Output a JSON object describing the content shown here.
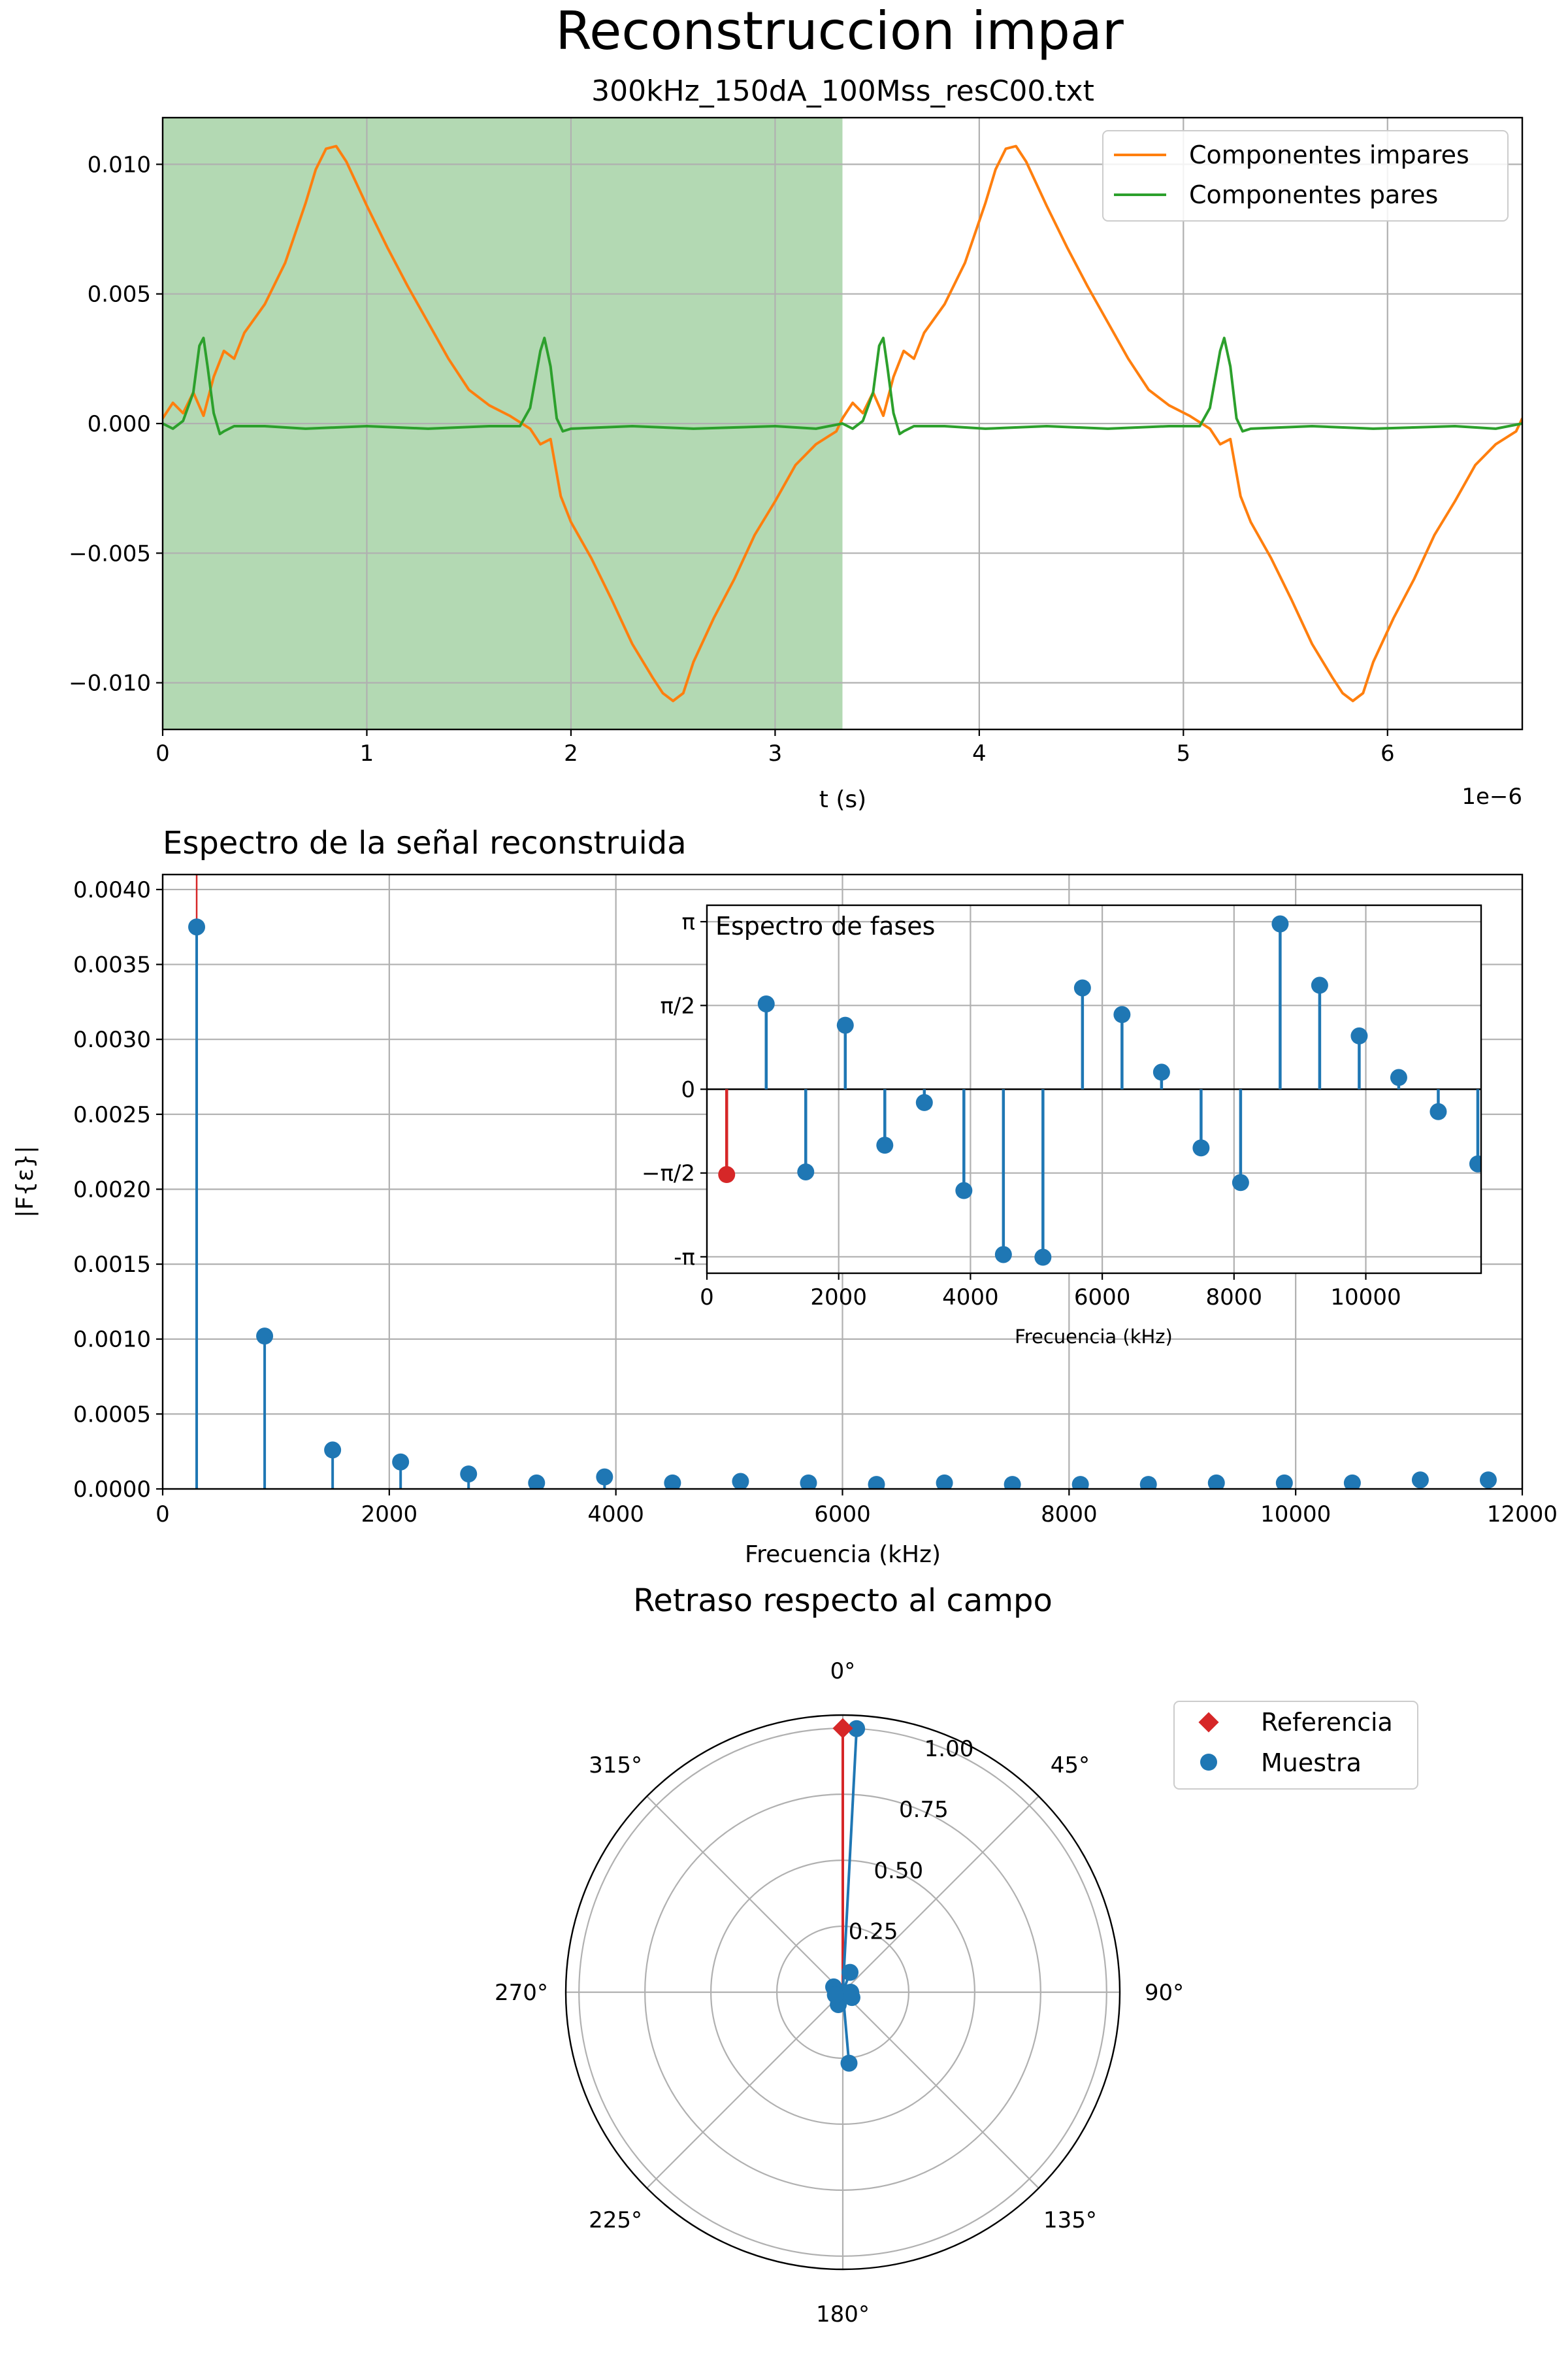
{
  "figure": {
    "suptitle": "Reconstruccion impar"
  },
  "colors": {
    "odd": "#ff7f0e",
    "even": "#2ca02c",
    "stem": "#1f77b4",
    "ref": "#d62728",
    "shade": "#b3d9b3",
    "grid": "#b0b0b0"
  },
  "chart_data": [
    {
      "type": "line",
      "title": "300kHz_150dA_100Mss_resC00.txt",
      "xlabel": "t (s)",
      "ylabel": "",
      "x_offset_label": "1e−6",
      "xlim": [
        0,
        6.66
      ],
      "ylim": [
        -0.0118,
        0.0118
      ],
      "xticks": [
        0,
        1,
        2,
        3,
        4,
        5,
        6
      ],
      "xtick_labels": [
        "0",
        "1",
        "2",
        "3",
        "4",
        "5",
        "6"
      ],
      "yticks": [
        -0.01,
        -0.005,
        0,
        0.005,
        0.01
      ],
      "ytick_labels": [
        "−0.010",
        "−0.005",
        "0.000",
        "0.005",
        "0.010"
      ],
      "shaded_span": [
        0,
        3.33
      ],
      "legend": {
        "location": "upper right",
        "entries": [
          "Componentes impares",
          "Componentes pares"
        ]
      },
      "series": [
        {
          "name": "Componentes impares",
          "x": [
            0,
            0.05,
            0.1,
            0.15,
            0.2,
            0.25,
            0.3,
            0.35,
            0.4,
            0.5,
            0.6,
            0.7,
            0.75,
            0.8,
            0.85,
            0.9,
            1.0,
            1.1,
            1.2,
            1.3,
            1.4,
            1.5,
            1.6,
            1.7,
            1.8,
            1.85,
            1.9,
            1.95,
            2.0,
            2.1,
            2.2,
            2.3,
            2.4,
            2.45,
            2.5,
            2.55,
            2.6,
            2.7,
            2.8,
            2.9,
            3.0,
            3.1,
            3.2,
            3.3,
            3.33
          ],
          "y": [
            0.0002,
            0.0008,
            0.0004,
            0.0012,
            0.0003,
            0.0018,
            0.0028,
            0.0025,
            0.0035,
            0.0046,
            0.0062,
            0.0085,
            0.0098,
            0.0106,
            0.0107,
            0.0101,
            0.0084,
            0.0068,
            0.0053,
            0.0039,
            0.0025,
            0.0013,
            0.0007,
            0.0003,
            -0.0002,
            -0.0008,
            -0.0006,
            -0.0028,
            -0.0038,
            -0.0052,
            -0.0068,
            -0.0085,
            -0.0098,
            -0.0104,
            -0.0107,
            -0.0104,
            -0.0092,
            -0.0075,
            -0.006,
            -0.0043,
            -0.003,
            -0.0016,
            -0.0008,
            -0.0003,
            0.0002
          ]
        },
        {
          "name": "Componentes pares",
          "x": [
            0,
            0.05,
            0.1,
            0.15,
            0.18,
            0.2,
            0.22,
            0.25,
            0.28,
            0.3,
            0.35,
            0.5,
            0.7,
            1.0,
            1.3,
            1.6,
            1.75,
            1.8,
            1.85,
            1.87,
            1.9,
            1.93,
            1.96,
            2.0,
            2.3,
            2.6,
            3.0,
            3.2,
            3.33
          ],
          "y": [
            0,
            -0.0002,
            0.0001,
            0.0012,
            0.003,
            0.0033,
            0.0022,
            0.0004,
            -0.0004,
            -0.0003,
            -0.0001,
            -0.0001,
            -0.0002,
            -0.0001,
            -0.0002,
            -0.0001,
            -0.0001,
            0.0006,
            0.0028,
            0.0033,
            0.0022,
            0.0002,
            -0.0003,
            -0.0002,
            -0.0001,
            -0.0002,
            -0.0001,
            -0.0002,
            0
          ]
        }
      ]
    },
    {
      "type": "bar",
      "title": "Espectro de la señal reconstruida",
      "xlabel": "Frecuencia (kHz)",
      "ylabel": "|F{ε}|",
      "xlim": [
        0,
        12000
      ],
      "ylim": [
        0,
        0.0041
      ],
      "xticks": [
        0,
        2000,
        4000,
        6000,
        8000,
        10000,
        12000
      ],
      "xtick_labels": [
        "0",
        "2000",
        "4000",
        "6000",
        "8000",
        "10000",
        "12000"
      ],
      "yticks": [
        0,
        0.0005,
        0.001,
        0.0015,
        0.002,
        0.0025,
        0.003,
        0.0035,
        0.004
      ],
      "ytick_labels": [
        "0.0000",
        "0.0005",
        "0.0010",
        "0.0015",
        "0.0020",
        "0.0025",
        "0.0030",
        "0.0035",
        "0.0040"
      ],
      "reference_line_x": 300,
      "x": [
        300,
        900,
        1500,
        2100,
        2700,
        3300,
        3900,
        4500,
        5100,
        5700,
        6300,
        6900,
        7500,
        8100,
        8700,
        9300,
        9900,
        10500,
        11100,
        11700
      ],
      "values": [
        0.00375,
        0.00102,
        0.00026,
        0.00018,
        0.0001,
        4e-05,
        8e-05,
        4e-05,
        5e-05,
        4e-05,
        3e-05,
        4e-05,
        3e-05,
        3e-05,
        3e-05,
        4e-05,
        4e-05,
        4e-05,
        6e-05,
        6e-05
      ]
    },
    {
      "type": "scatter",
      "title": "Espectro de fases",
      "xlabel": "Frecuencia (kHz)",
      "ylabel": "",
      "xlim": [
        0,
        11750
      ],
      "ylim": [
        -3.45,
        3.45
      ],
      "xticks": [
        0,
        2000,
        4000,
        6000,
        8000,
        10000
      ],
      "xtick_labels": [
        "0",
        "2000",
        "4000",
        "6000",
        "8000",
        "10000"
      ],
      "yticks": [
        3.1416,
        1.5708,
        0,
        -1.5708,
        -3.1416
      ],
      "ytick_labels": [
        "π",
        "π/2",
        "0",
        "−π/2",
        "-π"
      ],
      "x": [
        300,
        900,
        1500,
        2100,
        2700,
        3300,
        3900,
        4500,
        5100,
        5700,
        6300,
        6900,
        7500,
        8100,
        8700,
        9300,
        9900,
        10500,
        11100,
        11700
      ],
      "values": [
        -1.6,
        1.6,
        -1.55,
        1.2,
        -1.05,
        -0.25,
        -1.9,
        -3.1,
        -3.15,
        1.9,
        1.4,
        0.32,
        -1.1,
        -1.75,
        3.1,
        1.95,
        1.0,
        0.22,
        -0.42,
        -1.4
      ]
    },
    {
      "type": "scatter",
      "title": "Retraso respecto al campo",
      "rlim": [
        0,
        1.05
      ],
      "rticks": [
        0.25,
        0.5,
        0.75,
        1.0
      ],
      "rtick_labels": [
        "0.25",
        "0.50",
        "0.75",
        "1.00"
      ],
      "theta_ticks_deg": [
        0,
        45,
        90,
        135,
        180,
        225,
        270,
        315
      ],
      "theta_tick_labels": [
        "0°",
        "45°",
        "90°",
        "135°",
        "180°",
        "225°",
        "270°",
        "315°"
      ],
      "theta_zero": "top",
      "direction": "clockwise",
      "legend": {
        "location": "upper right",
        "entries": [
          "Referencia",
          "Muestra"
        ]
      },
      "series": [
        {
          "name": "Referencia",
          "theta_deg": [
            0
          ],
          "r": [
            1.0
          ]
        },
        {
          "name": "Muestra",
          "theta_deg": [
            3,
            175,
            20,
            300,
            200,
            90,
            120,
            250
          ],
          "r": [
            1.0,
            0.27,
            0.08,
            0.04,
            0.05,
            0.03,
            0.04,
            0.03
          ]
        }
      ]
    }
  ]
}
